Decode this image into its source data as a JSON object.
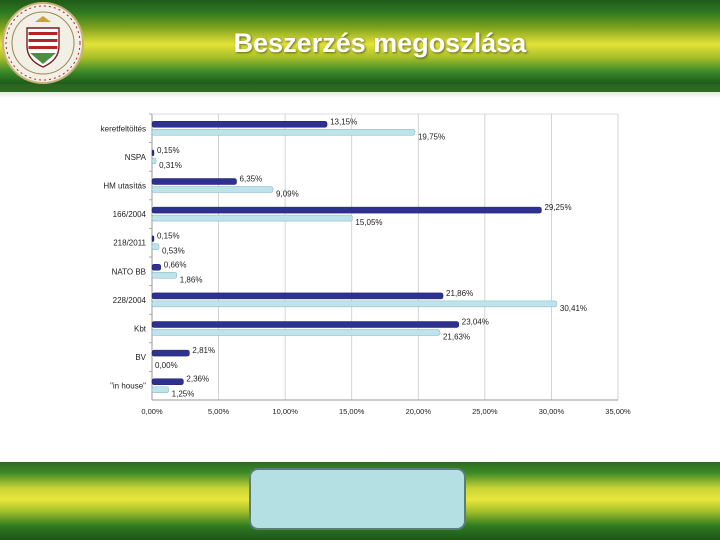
{
  "slide": {
    "title": "Beszerzés megoszlása",
    "colors": {
      "header_green": "#2f7a22",
      "header_yellow": "#e4e238",
      "title_text": "#ffffff",
      "footer_box": "#b5e0e3"
    }
  },
  "seal": {
    "icon": "university-seal-icon"
  },
  "chart_data": {
    "type": "bar",
    "orientation": "horizontal",
    "title": "",
    "xlabel": "",
    "ylabel": "",
    "xlim": [
      0,
      35
    ],
    "x_ticks": [
      0,
      5,
      10,
      15,
      20,
      25,
      30,
      35
    ],
    "x_tick_labels": [
      "0,00%",
      "5,00%",
      "10,00%",
      "15,00%",
      "20,00%",
      "25,00%",
      "30,00%",
      "35,00%"
    ],
    "grid": true,
    "legend": "none",
    "categories": [
      "keretfeltöltés",
      "NSPA",
      "HM utasítás",
      "166/2004",
      "218/2011",
      "NATO BB",
      "228/2004",
      "Kbt",
      "BV",
      "\"in house\""
    ],
    "series": [
      {
        "color": "#2e318f",
        "values": [
          13.15,
          0.15,
          6.35,
          29.25,
          0.15,
          0.66,
          21.86,
          23.04,
          2.81,
          2.36
        ],
        "labels": [
          "13,15%",
          "0,15%",
          "6,35%",
          "29,25%",
          "0,15%",
          "0,66%",
          "21,86%",
          "23,04%",
          "2,81%",
          "2,36%"
        ]
      },
      {
        "color": "#bfe3ea",
        "values": [
          19.75,
          0.31,
          9.09,
          15.05,
          0.53,
          1.86,
          30.41,
          21.63,
          0.0,
          1.25
        ],
        "labels": [
          "19,75%",
          "0,31%",
          "9,09%",
          "15,05%",
          "0,53%",
          "1,86%",
          "30,41%",
          "21,63%",
          "0,00%",
          "1,25%"
        ]
      }
    ]
  }
}
